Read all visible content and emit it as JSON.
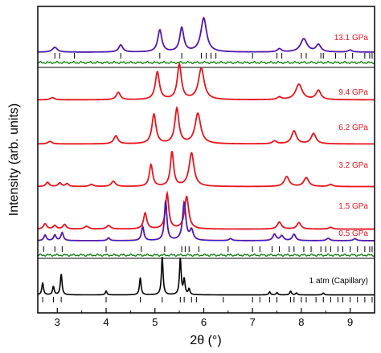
{
  "chart_data": {
    "type": "line",
    "xlabel": "2θ (°)",
    "ylabel": "Intensity (arb. units)",
    "xlim": [
      2.6,
      9.5
    ],
    "x_ticks": [
      "3",
      "4",
      "5",
      "6",
      "7",
      "8",
      "9"
    ],
    "colors": {
      "measured": "#e8141c",
      "fit": "#2b1fd6",
      "difference": "#0a7d0a",
      "ambient": "#000000",
      "ticks": "#000000",
      "pressure_label": "#e8141c"
    },
    "series": [
      {
        "label": "13.1 GPa",
        "type": "refined",
        "baseline": 0.1,
        "peaks": [
          [
            2.95,
            0.12,
            0.06
          ],
          [
            4.3,
            0.18,
            0.05
          ],
          [
            5.1,
            0.55,
            0.05
          ],
          [
            5.55,
            0.6,
            0.05
          ],
          [
            6.0,
            0.85,
            0.07
          ],
          [
            7.55,
            0.08,
            0.05
          ],
          [
            8.05,
            0.33,
            0.08
          ],
          [
            8.35,
            0.18,
            0.06
          ],
          [
            9.0,
            0.05,
            0.05
          ]
        ],
        "reflections": [
          2.95,
          3.05,
          3.35,
          4.3,
          5.1,
          5.55,
          5.95,
          6.05,
          6.15,
          6.25,
          7.0,
          7.5,
          7.6,
          8.0,
          8.1,
          8.4,
          8.45,
          8.7,
          8.9,
          9.05,
          9.3,
          9.4,
          9.45
        ]
      },
      {
        "label": "9.4 GPa",
        "type": "measured",
        "baseline": 0.12,
        "peaks": [
          [
            2.9,
            0.06,
            0.05
          ],
          [
            4.25,
            0.2,
            0.05
          ],
          [
            5.05,
            0.75,
            0.05
          ],
          [
            5.5,
            0.95,
            0.05
          ],
          [
            5.95,
            0.85,
            0.07
          ],
          [
            7.55,
            0.07,
            0.05
          ],
          [
            7.95,
            0.42,
            0.08
          ],
          [
            8.35,
            0.25,
            0.06
          ]
        ]
      },
      {
        "label": "6.2 GPa",
        "type": "measured",
        "baseline": 0.12,
        "peaks": [
          [
            2.85,
            0.07,
            0.05
          ],
          [
            4.2,
            0.22,
            0.05
          ],
          [
            4.98,
            0.8,
            0.05
          ],
          [
            5.45,
            0.95,
            0.05
          ],
          [
            5.88,
            0.82,
            0.07
          ],
          [
            7.45,
            0.08,
            0.05
          ],
          [
            7.85,
            0.35,
            0.06
          ],
          [
            8.25,
            0.28,
            0.06
          ]
        ]
      },
      {
        "label": "3.2 GPa",
        "type": "measured",
        "baseline": 0.1,
        "peaks": [
          [
            2.8,
            0.12,
            0.04
          ],
          [
            3.05,
            0.1,
            0.04
          ],
          [
            3.2,
            0.08,
            0.04
          ],
          [
            3.7,
            0.06,
            0.05
          ],
          [
            4.15,
            0.15,
            0.05
          ],
          [
            4.92,
            0.62,
            0.04
          ],
          [
            5.35,
            0.98,
            0.04
          ],
          [
            5.75,
            0.95,
            0.06
          ],
          [
            7.7,
            0.28,
            0.06
          ],
          [
            8.1,
            0.25,
            0.06
          ],
          [
            8.6,
            0.06,
            0.05
          ]
        ]
      },
      {
        "label": "1.5 GPa",
        "type": "measured",
        "baseline": 0.1,
        "peaks": [
          [
            2.75,
            0.15,
            0.04
          ],
          [
            2.95,
            0.1,
            0.04
          ],
          [
            3.15,
            0.13,
            0.04
          ],
          [
            3.6,
            0.08,
            0.05
          ],
          [
            4.05,
            0.1,
            0.05
          ],
          [
            4.8,
            0.45,
            0.04
          ],
          [
            5.25,
            1.0,
            0.04
          ],
          [
            5.65,
            0.92,
            0.05
          ],
          [
            7.55,
            0.2,
            0.05
          ],
          [
            7.95,
            0.18,
            0.05
          ],
          [
            8.6,
            0.05,
            0.05
          ]
        ]
      },
      {
        "label": "0.5 GPa",
        "type": "refined",
        "baseline": 0.1,
        "peaks": [
          [
            2.75,
            0.14,
            0.03
          ],
          [
            2.95,
            0.14,
            0.03
          ],
          [
            3.1,
            0.2,
            0.03
          ],
          [
            4.05,
            0.07,
            0.03
          ],
          [
            4.75,
            0.35,
            0.03
          ],
          [
            5.22,
            1.0,
            0.03
          ],
          [
            5.6,
            0.95,
            0.04
          ],
          [
            5.75,
            0.25,
            0.04
          ],
          [
            6.55,
            0.05,
            0.04
          ],
          [
            7.45,
            0.16,
            0.04
          ],
          [
            7.6,
            0.12,
            0.04
          ],
          [
            7.85,
            0.16,
            0.04
          ],
          [
            8.55,
            0.06,
            0.04
          ],
          [
            9.1,
            0.05,
            0.04
          ]
        ],
        "reflections": [
          2.72,
          2.95,
          3.1,
          4.0,
          4.72,
          5.2,
          5.55,
          5.62,
          5.7,
          5.9,
          6.5,
          7.0,
          7.15,
          7.4,
          7.55,
          7.75,
          7.85,
          8.05,
          8.2,
          8.4,
          8.5,
          8.6,
          8.75,
          8.85,
          9.0,
          9.15,
          9.3,
          9.4,
          9.45
        ]
      },
      {
        "label": "1 atm (Capillary)",
        "type": "ambient",
        "baseline": 0.05,
        "peaks": [
          [
            2.7,
            0.32,
            0.02
          ],
          [
            2.92,
            0.22,
            0.02
          ],
          [
            3.08,
            0.55,
            0.02
          ],
          [
            4.0,
            0.1,
            0.02
          ],
          [
            4.7,
            0.45,
            0.02
          ],
          [
            5.15,
            1.0,
            0.02
          ],
          [
            5.52,
            0.95,
            0.02
          ],
          [
            5.6,
            0.4,
            0.02
          ],
          [
            5.7,
            0.15,
            0.02
          ],
          [
            7.35,
            0.08,
            0.02
          ],
          [
            7.5,
            0.06,
            0.02
          ],
          [
            7.78,
            0.1,
            0.02
          ],
          [
            7.9,
            0.05,
            0.02
          ],
          [
            8.45,
            0.05,
            0.02
          ]
        ],
        "reflections": [
          2.7,
          2.92,
          3.08,
          4.0,
          4.7,
          5.15,
          5.52,
          5.6,
          5.75,
          5.85,
          6.4,
          7.0,
          7.15,
          7.35,
          7.5,
          7.78,
          7.85,
          8.0,
          8.1,
          8.3,
          8.45,
          8.6,
          8.75,
          8.85,
          9.0,
          9.15,
          9.3,
          9.45
        ]
      }
    ]
  }
}
